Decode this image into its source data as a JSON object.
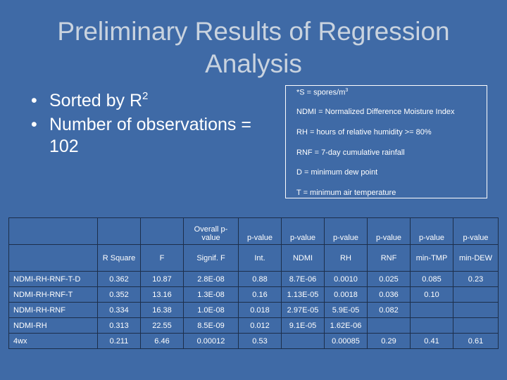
{
  "slide": {
    "title": "Preliminary Results of Regression Analysis",
    "bullets": {
      "b1_text": "Sorted by R",
      "b1_sup": "2",
      "b2": "Number of observations = 102"
    },
    "legend": {
      "l1_text": "*S = spores/m",
      "l1_sup": "3",
      "l2": "NDMI = Normalized Difference Moisture Index",
      "l3": "RH = hours of relative humidity >= 80%",
      "l4": "RNF = 7-day cumulative rainfall",
      "l5": "D = minimum dew point",
      "l6": "T = minimum air temperature"
    }
  },
  "table": {
    "header1": [
      "",
      "",
      "",
      "Overall p-value",
      "p-value",
      "p-value",
      "p-value",
      "p-value",
      "p-value",
      "p-value"
    ],
    "header2": [
      "",
      "R Square",
      "F",
      "Signif. F",
      "Int.",
      "NDMI",
      "RH",
      "RNF",
      "min-TMP",
      "min-DEW"
    ],
    "rows": [
      [
        "NDMI-RH-RNF-T-D",
        "0.362",
        "10.87",
        "2.8E-08",
        "0.88",
        "8.7E-06",
        "0.0010",
        "0.025",
        "0.085",
        "0.23"
      ],
      [
        "NDMI-RH-RNF-T",
        "0.352",
        "13.16",
        "1.3E-08",
        "0.16",
        "1.13E-05",
        "0.0018",
        "0.036",
        "0.10",
        ""
      ],
      [
        "NDMI-RH-RNF",
        "0.334",
        "16.38",
        "1.0E-08",
        "0.018",
        "2.97E-05",
        "5.9E-05",
        "0.082",
        "",
        ""
      ],
      [
        "NDMI-RH",
        "0.313",
        "22.55",
        "8.5E-09",
        "0.012",
        "9.1E-05",
        "1.62E-06",
        "",
        "",
        ""
      ],
      [
        "4wx",
        "0.211",
        "6.46",
        "0.00012",
        "0.53",
        "",
        "0.00085",
        "0.29",
        "0.41",
        "0.61"
      ]
    ]
  }
}
